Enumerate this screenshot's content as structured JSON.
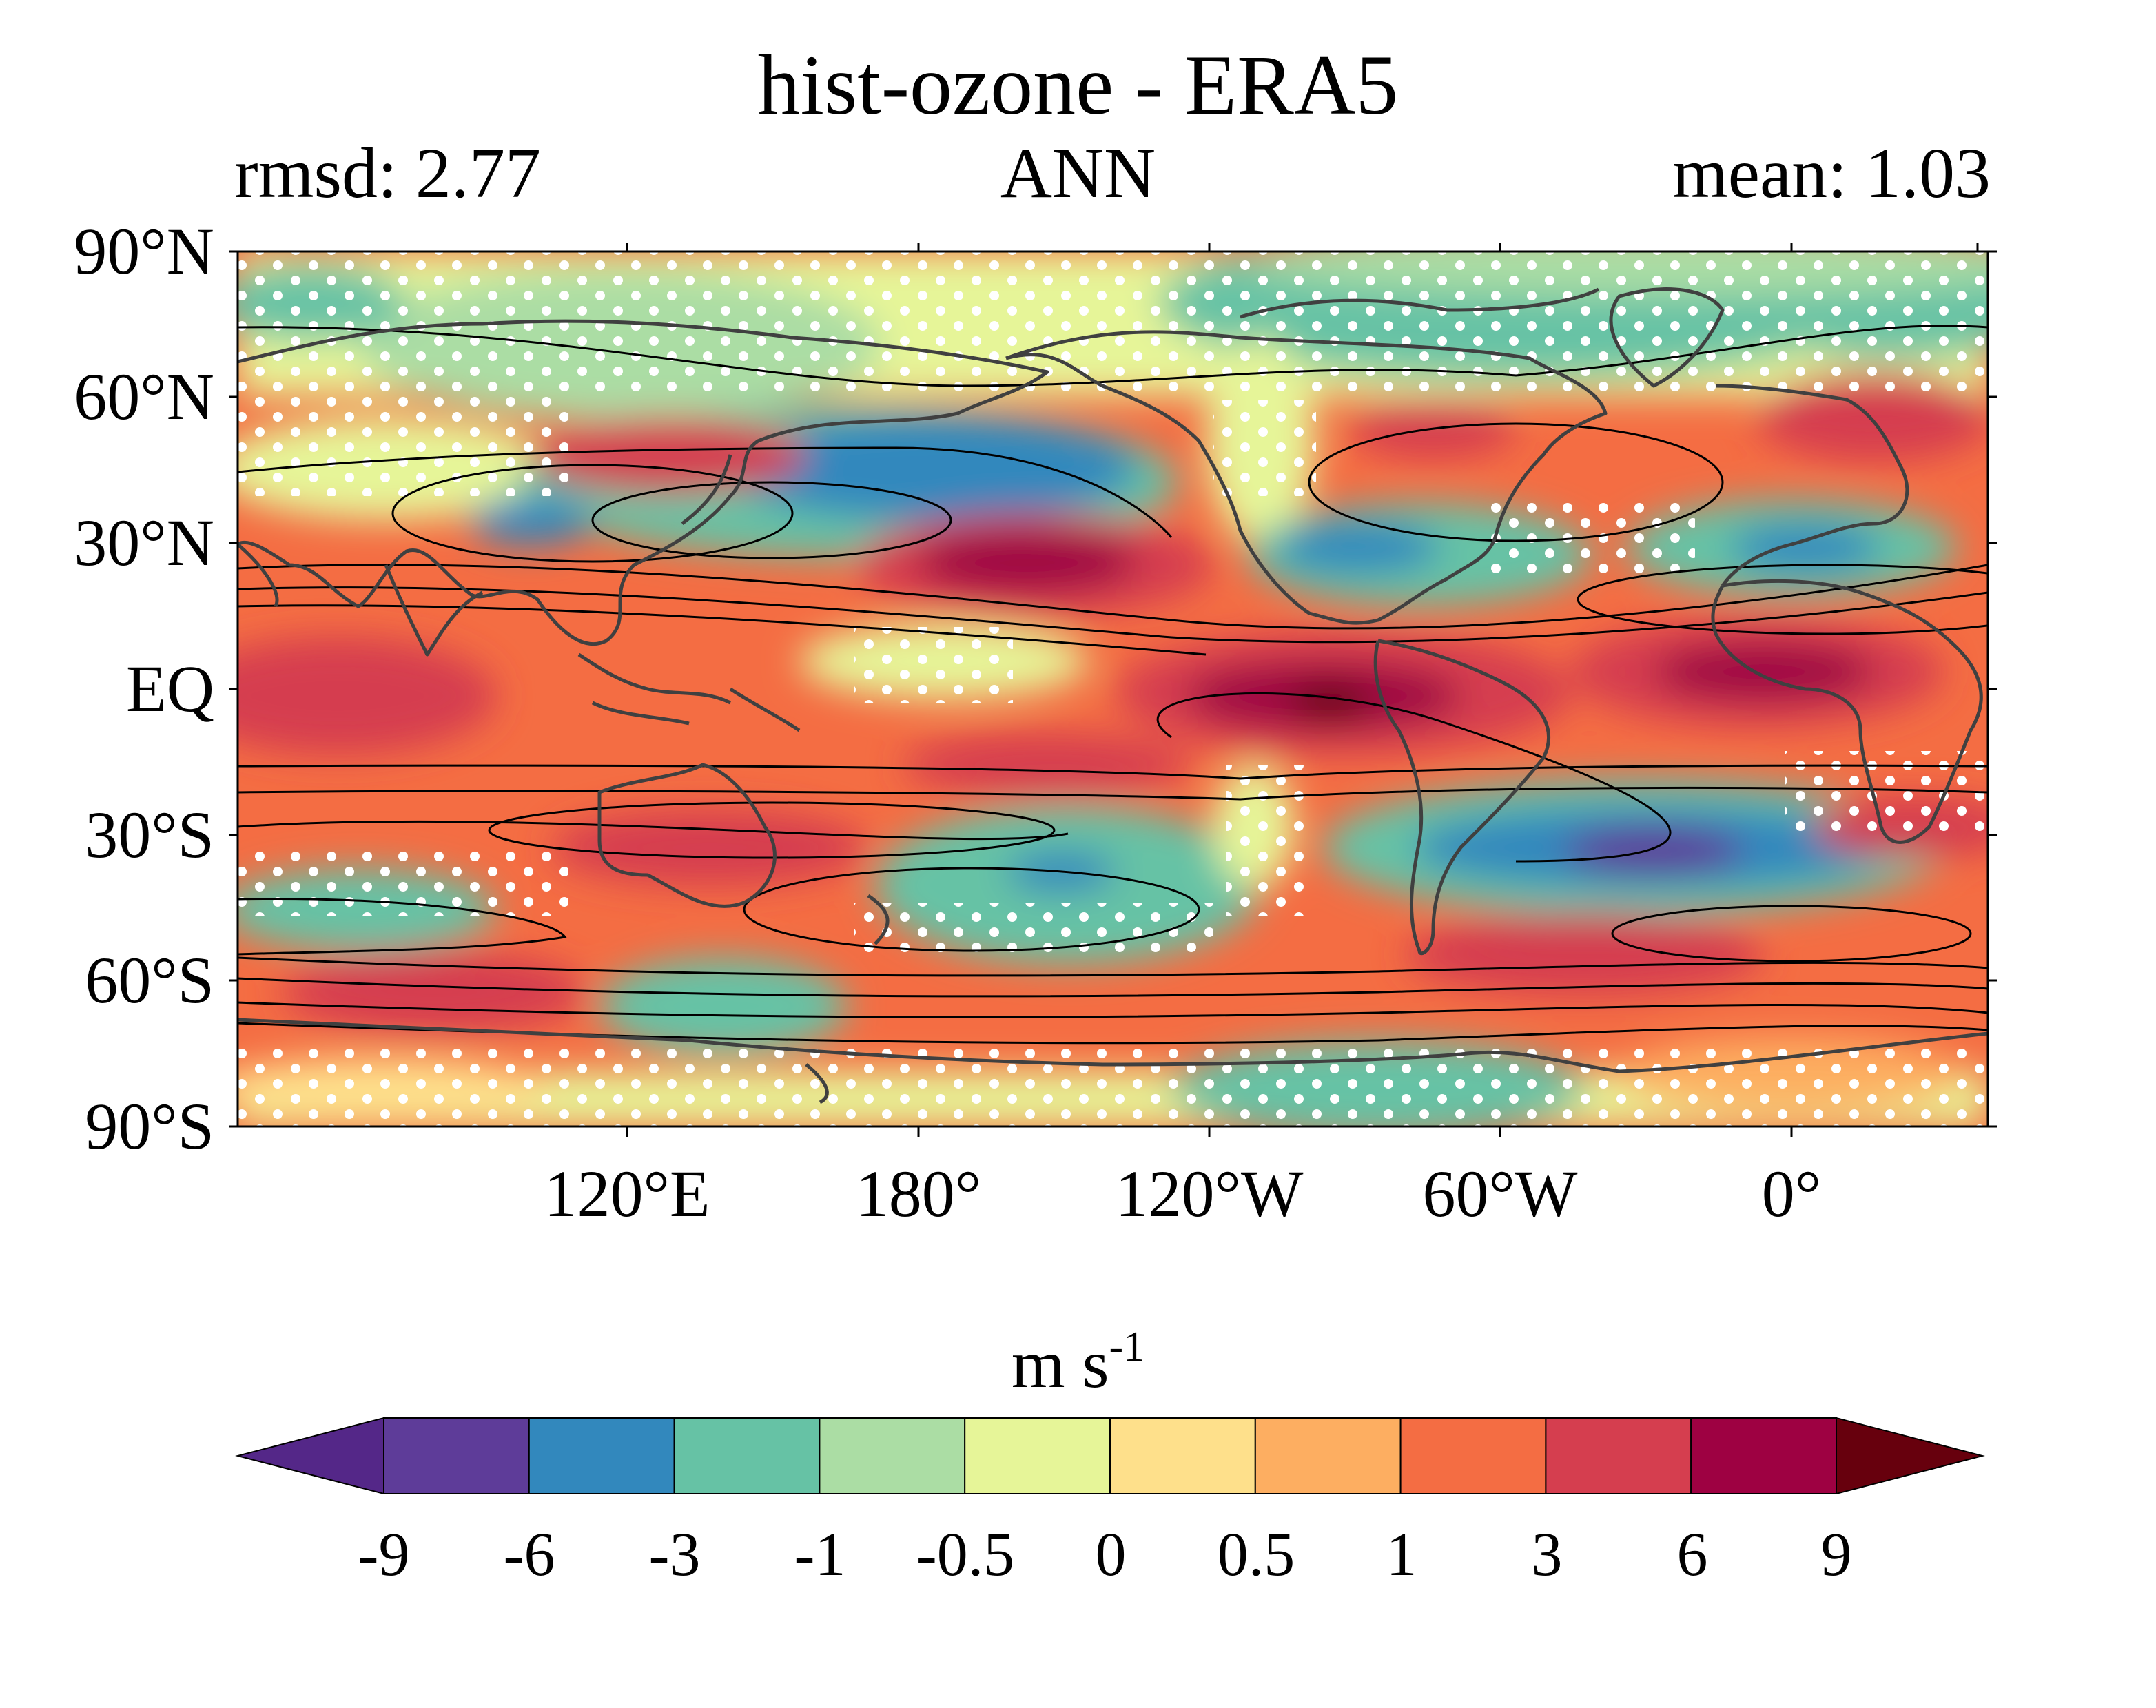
{
  "header": {
    "title": "hist-ozone - ERA5",
    "rmsd": "rmsd: 2.77",
    "season": "ANN",
    "mean": "mean: 1.03"
  },
  "map": {
    "lat_labels": [
      "90°N",
      "60°N",
      "30°N",
      "EQ",
      "30°S",
      "60°S",
      "90°S"
    ],
    "lon_labels": [
      "120°E",
      "180°",
      "120°W",
      "60°W",
      "0°"
    ],
    "lon_range": [
      40,
      400
    ],
    "lat_range": [
      -90,
      90
    ]
  },
  "colorbar": {
    "unit_base": "m s",
    "unit_exp": "-1",
    "levels": [
      "-9",
      "-6",
      "-3",
      "-1",
      "-0.5",
      "0",
      "0.5",
      "1",
      "3",
      "6",
      "9"
    ],
    "colors": [
      "#5e3c99",
      "#3288bd",
      "#66c2a5",
      "#abdda4",
      "#e6f598",
      "#fee08b",
      "#fdae61",
      "#f46d43",
      "#d53e4f",
      "#9e0142"
    ],
    "under_color": "#542788",
    "over_color": "#67000d"
  }
}
